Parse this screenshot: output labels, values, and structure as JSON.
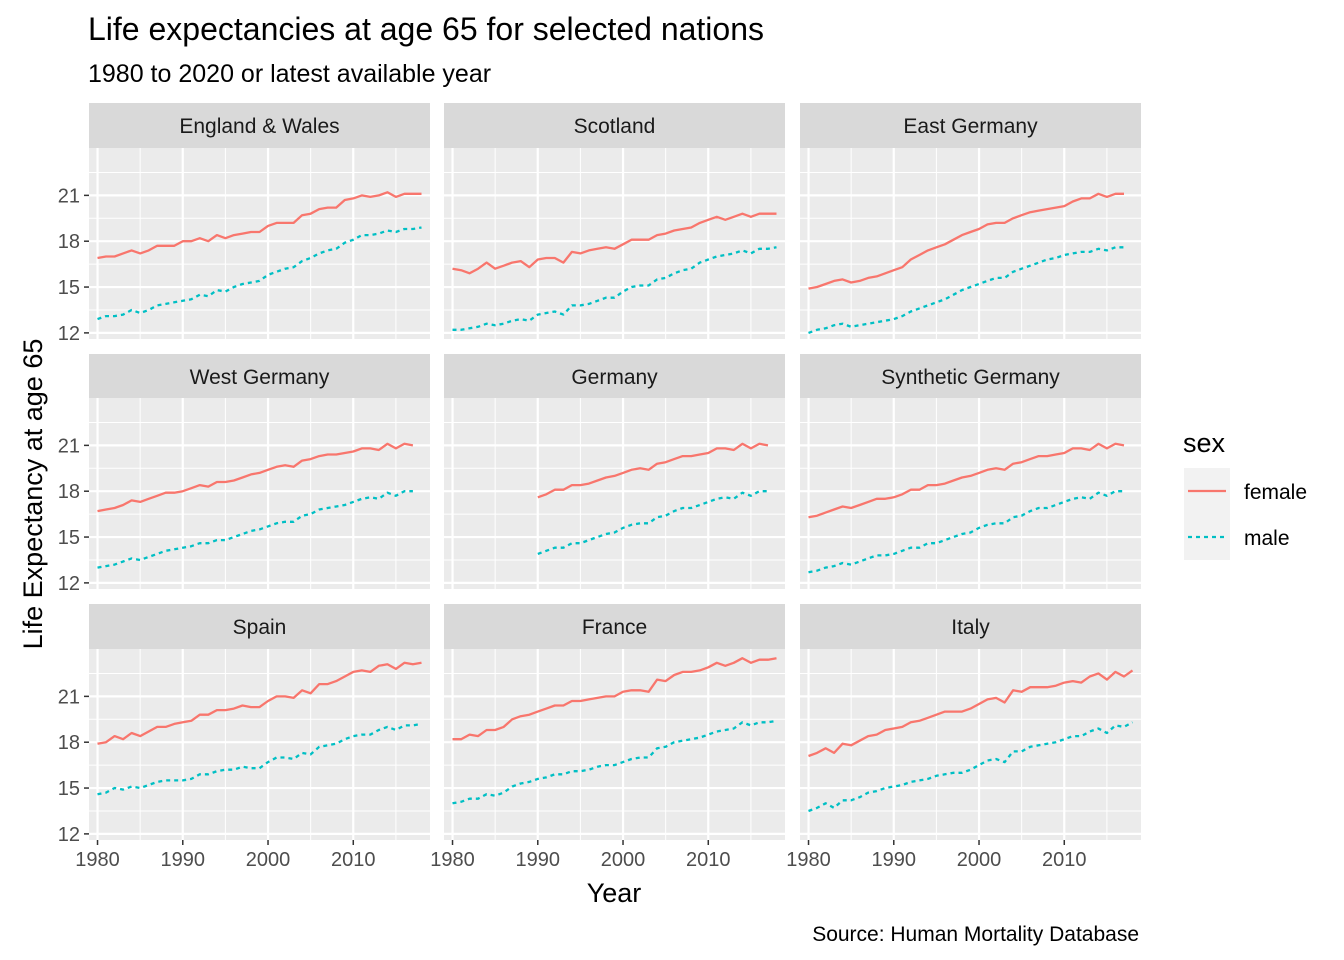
{
  "chart_data": {
    "type": "line",
    "title": "Life expectancies at age 65 for selected nations",
    "subtitle": "1980 to 2020 or latest available year",
    "xlabel": "Year",
    "ylabel": "Life Expectancy at age 65",
    "caption": "Source: Human Mortality Database",
    "x_ticks": [
      1980,
      1990,
      2000,
      2010
    ],
    "y_ticks": [
      12,
      15,
      18,
      21
    ],
    "xlim": [
      1979,
      2019
    ],
    "ylim": [
      11.6,
      24.1
    ],
    "grid": true,
    "legend": {
      "title": "sex",
      "position": "right",
      "entries": [
        {
          "label": "female",
          "color": "#F8766D",
          "linetype": "solid"
        },
        {
          "label": "male",
          "color": "#00BFC4",
          "linetype": "dotted"
        }
      ]
    },
    "colors": {
      "female": "#F8766D",
      "male": "#00BFC4"
    },
    "panels": [
      {
        "name": "England & Wales",
        "start_year": 1980,
        "female": [
          16.9,
          17.0,
          17.0,
          17.2,
          17.4,
          17.2,
          17.4,
          17.7,
          17.7,
          17.7,
          18.0,
          18.0,
          18.2,
          18.0,
          18.4,
          18.2,
          18.4,
          18.5,
          18.6,
          18.6,
          19.0,
          19.2,
          19.2,
          19.2,
          19.7,
          19.8,
          20.1,
          20.2,
          20.2,
          20.7,
          20.8,
          21.0,
          20.9,
          21.0,
          21.2,
          20.9,
          21.1,
          21.1,
          21.1
        ],
        "male": [
          12.9,
          13.1,
          13.1,
          13.2,
          13.5,
          13.3,
          13.5,
          13.8,
          13.9,
          14.0,
          14.1,
          14.2,
          14.5,
          14.4,
          14.8,
          14.7,
          15.0,
          15.2,
          15.3,
          15.4,
          15.8,
          16.0,
          16.2,
          16.3,
          16.7,
          16.9,
          17.2,
          17.4,
          17.5,
          17.9,
          18.1,
          18.4,
          18.4,
          18.5,
          18.7,
          18.6,
          18.8,
          18.8,
          18.9
        ]
      },
      {
        "name": "Scotland",
        "start_year": 1980,
        "female": [
          16.2,
          16.1,
          15.9,
          16.2,
          16.6,
          16.2,
          16.4,
          16.6,
          16.7,
          16.3,
          16.8,
          16.9,
          16.9,
          16.6,
          17.3,
          17.2,
          17.4,
          17.5,
          17.6,
          17.5,
          17.8,
          18.1,
          18.1,
          18.1,
          18.4,
          18.5,
          18.7,
          18.8,
          18.9,
          19.2,
          19.4,
          19.6,
          19.4,
          19.6,
          19.8,
          19.6,
          19.8,
          19.8,
          19.8
        ],
        "male": [
          12.2,
          12.2,
          12.3,
          12.4,
          12.6,
          12.5,
          12.6,
          12.8,
          12.9,
          12.8,
          13.2,
          13.3,
          13.4,
          13.2,
          13.8,
          13.8,
          13.9,
          14.1,
          14.3,
          14.3,
          14.7,
          15.0,
          15.1,
          15.1,
          15.5,
          15.6,
          15.9,
          16.1,
          16.2,
          16.6,
          16.8,
          17.0,
          17.1,
          17.2,
          17.4,
          17.2,
          17.5,
          17.5,
          17.6
        ]
      },
      {
        "name": "East Germany",
        "start_year": 1980,
        "female": [
          14.9,
          15.0,
          15.2,
          15.4,
          15.5,
          15.3,
          15.4,
          15.6,
          15.7,
          15.9,
          16.1,
          16.3,
          16.8,
          17.1,
          17.4,
          17.6,
          17.8,
          18.1,
          18.4,
          18.6,
          18.8,
          19.1,
          19.2,
          19.2,
          19.5,
          19.7,
          19.9,
          20.0,
          20.1,
          20.2,
          20.3,
          20.6,
          20.8,
          20.8,
          21.1,
          20.9,
          21.1,
          21.1
        ],
        "male": [
          12.0,
          12.2,
          12.3,
          12.5,
          12.6,
          12.4,
          12.5,
          12.6,
          12.7,
          12.8,
          12.9,
          13.1,
          13.4,
          13.6,
          13.8,
          14.0,
          14.2,
          14.5,
          14.8,
          15.0,
          15.2,
          15.4,
          15.6,
          15.6,
          16.0,
          16.2,
          16.4,
          16.6,
          16.8,
          16.9,
          17.1,
          17.2,
          17.3,
          17.3,
          17.5,
          17.4,
          17.6,
          17.6
        ]
      },
      {
        "name": "West Germany",
        "start_year": 1980,
        "female": [
          16.7,
          16.8,
          16.9,
          17.1,
          17.4,
          17.3,
          17.5,
          17.7,
          17.9,
          17.9,
          18.0,
          18.2,
          18.4,
          18.3,
          18.6,
          18.6,
          18.7,
          18.9,
          19.1,
          19.2,
          19.4,
          19.6,
          19.7,
          19.6,
          20.0,
          20.1,
          20.3,
          20.4,
          20.4,
          20.5,
          20.6,
          20.8,
          20.8,
          20.7,
          21.1,
          20.8,
          21.1,
          21.0
        ],
        "male": [
          13.0,
          13.1,
          13.2,
          13.4,
          13.6,
          13.5,
          13.7,
          13.9,
          14.1,
          14.2,
          14.3,
          14.4,
          14.6,
          14.6,
          14.8,
          14.8,
          15.0,
          15.2,
          15.4,
          15.5,
          15.7,
          15.9,
          16.0,
          16.0,
          16.4,
          16.5,
          16.8,
          16.9,
          17.0,
          17.1,
          17.3,
          17.5,
          17.6,
          17.5,
          17.9,
          17.7,
          18.0,
          18.0
        ]
      },
      {
        "name": "Germany",
        "start_year": 1990,
        "female": [
          17.6,
          17.8,
          18.1,
          18.1,
          18.4,
          18.4,
          18.5,
          18.7,
          18.9,
          19.0,
          19.2,
          19.4,
          19.5,
          19.4,
          19.8,
          19.9,
          20.1,
          20.3,
          20.3,
          20.4,
          20.5,
          20.8,
          20.8,
          20.7,
          21.1,
          20.8,
          21.1,
          21.0
        ],
        "male": [
          13.9,
          14.1,
          14.3,
          14.3,
          14.6,
          14.6,
          14.8,
          15.0,
          15.2,
          15.3,
          15.6,
          15.8,
          15.9,
          15.9,
          16.3,
          16.4,
          16.7,
          16.9,
          16.9,
          17.1,
          17.3,
          17.5,
          17.6,
          17.5,
          17.9,
          17.7,
          18.0,
          18.0
        ]
      },
      {
        "name": "Synthetic Germany",
        "start_year": 1980,
        "female": [
          16.3,
          16.4,
          16.6,
          16.8,
          17.0,
          16.9,
          17.1,
          17.3,
          17.5,
          17.5,
          17.6,
          17.8,
          18.1,
          18.1,
          18.4,
          18.4,
          18.5,
          18.7,
          18.9,
          19.0,
          19.2,
          19.4,
          19.5,
          19.4,
          19.8,
          19.9,
          20.1,
          20.3,
          20.3,
          20.4,
          20.5,
          20.8,
          20.8,
          20.7,
          21.1,
          20.8,
          21.1,
          21.0
        ],
        "male": [
          12.7,
          12.8,
          13.0,
          13.1,
          13.3,
          13.2,
          13.4,
          13.6,
          13.8,
          13.8,
          13.9,
          14.1,
          14.3,
          14.3,
          14.6,
          14.6,
          14.8,
          15.0,
          15.2,
          15.3,
          15.6,
          15.8,
          15.9,
          15.9,
          16.3,
          16.4,
          16.7,
          16.9,
          16.9,
          17.1,
          17.3,
          17.5,
          17.6,
          17.5,
          17.9,
          17.7,
          18.0,
          18.0
        ]
      },
      {
        "name": "Spain",
        "start_year": 1980,
        "female": [
          17.9,
          18.0,
          18.4,
          18.2,
          18.6,
          18.4,
          18.7,
          19.0,
          19.0,
          19.2,
          19.3,
          19.4,
          19.8,
          19.8,
          20.1,
          20.1,
          20.2,
          20.4,
          20.3,
          20.3,
          20.7,
          21.0,
          21.0,
          20.9,
          21.4,
          21.2,
          21.8,
          21.8,
          22.0,
          22.3,
          22.6,
          22.7,
          22.6,
          23.0,
          23.1,
          22.8,
          23.2,
          23.1,
          23.2
        ],
        "male": [
          14.6,
          14.7,
          15.0,
          14.9,
          15.1,
          15.0,
          15.2,
          15.4,
          15.5,
          15.5,
          15.5,
          15.6,
          15.9,
          15.9,
          16.1,
          16.2,
          16.2,
          16.4,
          16.3,
          16.3,
          16.7,
          17.0,
          17.0,
          16.9,
          17.3,
          17.2,
          17.7,
          17.8,
          17.9,
          18.2,
          18.4,
          18.5,
          18.5,
          18.8,
          19.0,
          18.8,
          19.1,
          19.1,
          19.2
        ]
      },
      {
        "name": "France",
        "start_year": 1980,
        "female": [
          18.2,
          18.2,
          18.5,
          18.4,
          18.8,
          18.8,
          19.0,
          19.5,
          19.7,
          19.8,
          20.0,
          20.2,
          20.4,
          20.4,
          20.7,
          20.7,
          20.8,
          20.9,
          21.0,
          21.0,
          21.3,
          21.4,
          21.4,
          21.3,
          22.1,
          22.0,
          22.4,
          22.6,
          22.6,
          22.7,
          22.9,
          23.2,
          23.0,
          23.2,
          23.5,
          23.2,
          23.4,
          23.4,
          23.5
        ],
        "male": [
          14.0,
          14.1,
          14.3,
          14.3,
          14.6,
          14.5,
          14.7,
          15.1,
          15.3,
          15.4,
          15.6,
          15.7,
          15.9,
          15.9,
          16.1,
          16.1,
          16.2,
          16.4,
          16.5,
          16.5,
          16.7,
          16.9,
          17.0,
          17.0,
          17.6,
          17.7,
          18.0,
          18.1,
          18.2,
          18.3,
          18.5,
          18.7,
          18.8,
          18.9,
          19.3,
          19.1,
          19.3,
          19.3,
          19.4
        ]
      },
      {
        "name": "Italy",
        "start_year": 1980,
        "female": [
          17.1,
          17.3,
          17.6,
          17.3,
          17.9,
          17.8,
          18.1,
          18.4,
          18.5,
          18.8,
          18.9,
          19.0,
          19.3,
          19.4,
          19.6,
          19.8,
          20.0,
          20.0,
          20.0,
          20.2,
          20.5,
          20.8,
          20.9,
          20.6,
          21.4,
          21.3,
          21.6,
          21.6,
          21.6,
          21.7,
          21.9,
          22.0,
          21.9,
          22.3,
          22.5,
          22.1,
          22.6,
          22.3,
          22.7
        ],
        "male": [
          13.5,
          13.7,
          14.0,
          13.7,
          14.2,
          14.2,
          14.4,
          14.7,
          14.8,
          15.0,
          15.1,
          15.2,
          15.4,
          15.5,
          15.6,
          15.8,
          15.9,
          16.0,
          16.0,
          16.2,
          16.5,
          16.8,
          16.9,
          16.7,
          17.4,
          17.4,
          17.7,
          17.8,
          17.9,
          18.0,
          18.2,
          18.4,
          18.4,
          18.7,
          18.9,
          18.6,
          19.1,
          19.0,
          19.3
        ]
      }
    ]
  }
}
